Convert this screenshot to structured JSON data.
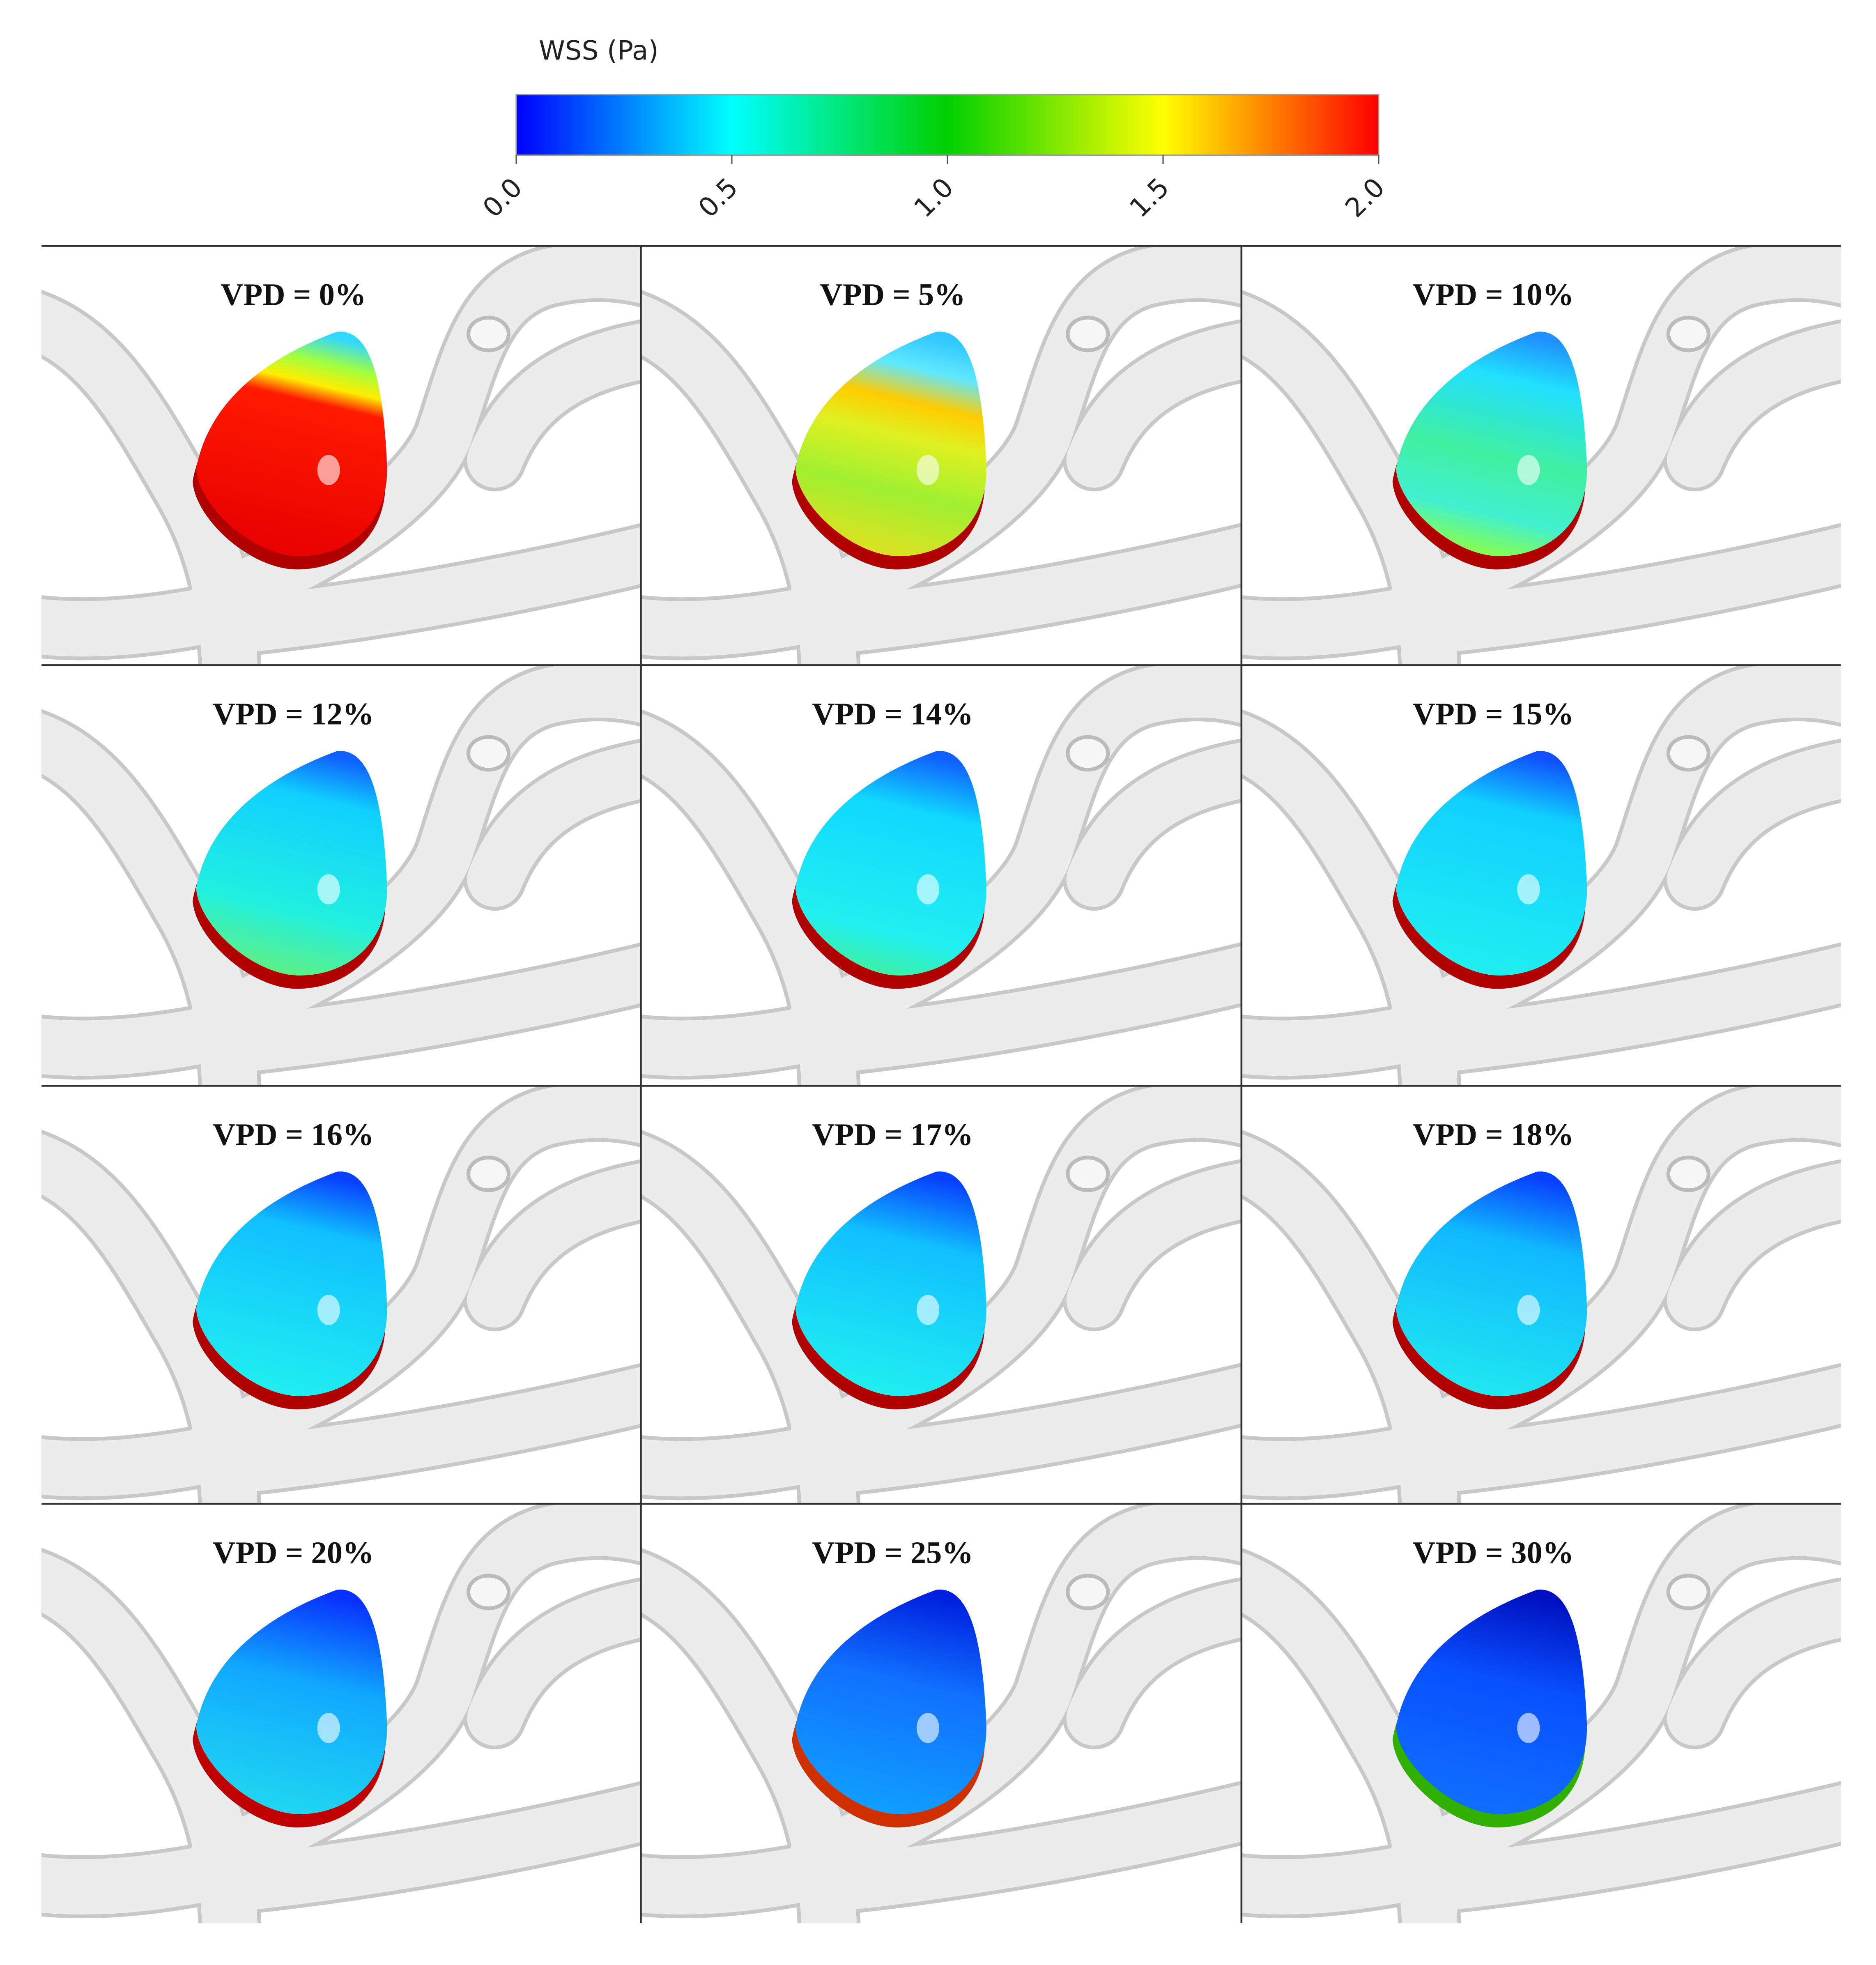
{
  "colorbar": {
    "title": "WSS (Pa)",
    "ticks": [
      "0.0",
      "0.5",
      "1.0",
      "1.5",
      "2.0"
    ]
  },
  "panels": [
    {
      "label": "VPD = 0%"
    },
    {
      "label": "VPD = 5%"
    },
    {
      "label": "VPD = 10%"
    },
    {
      "label": "VPD = 12%"
    },
    {
      "label": "VPD = 14%"
    },
    {
      "label": "VPD = 15%"
    },
    {
      "label": "VPD = 16%"
    },
    {
      "label": "VPD = 17%"
    },
    {
      "label": "VPD = 18%"
    },
    {
      "label": "VPD = 20%"
    },
    {
      "label": "VPD = 25%"
    },
    {
      "label": "VPD = 30%"
    }
  ]
}
